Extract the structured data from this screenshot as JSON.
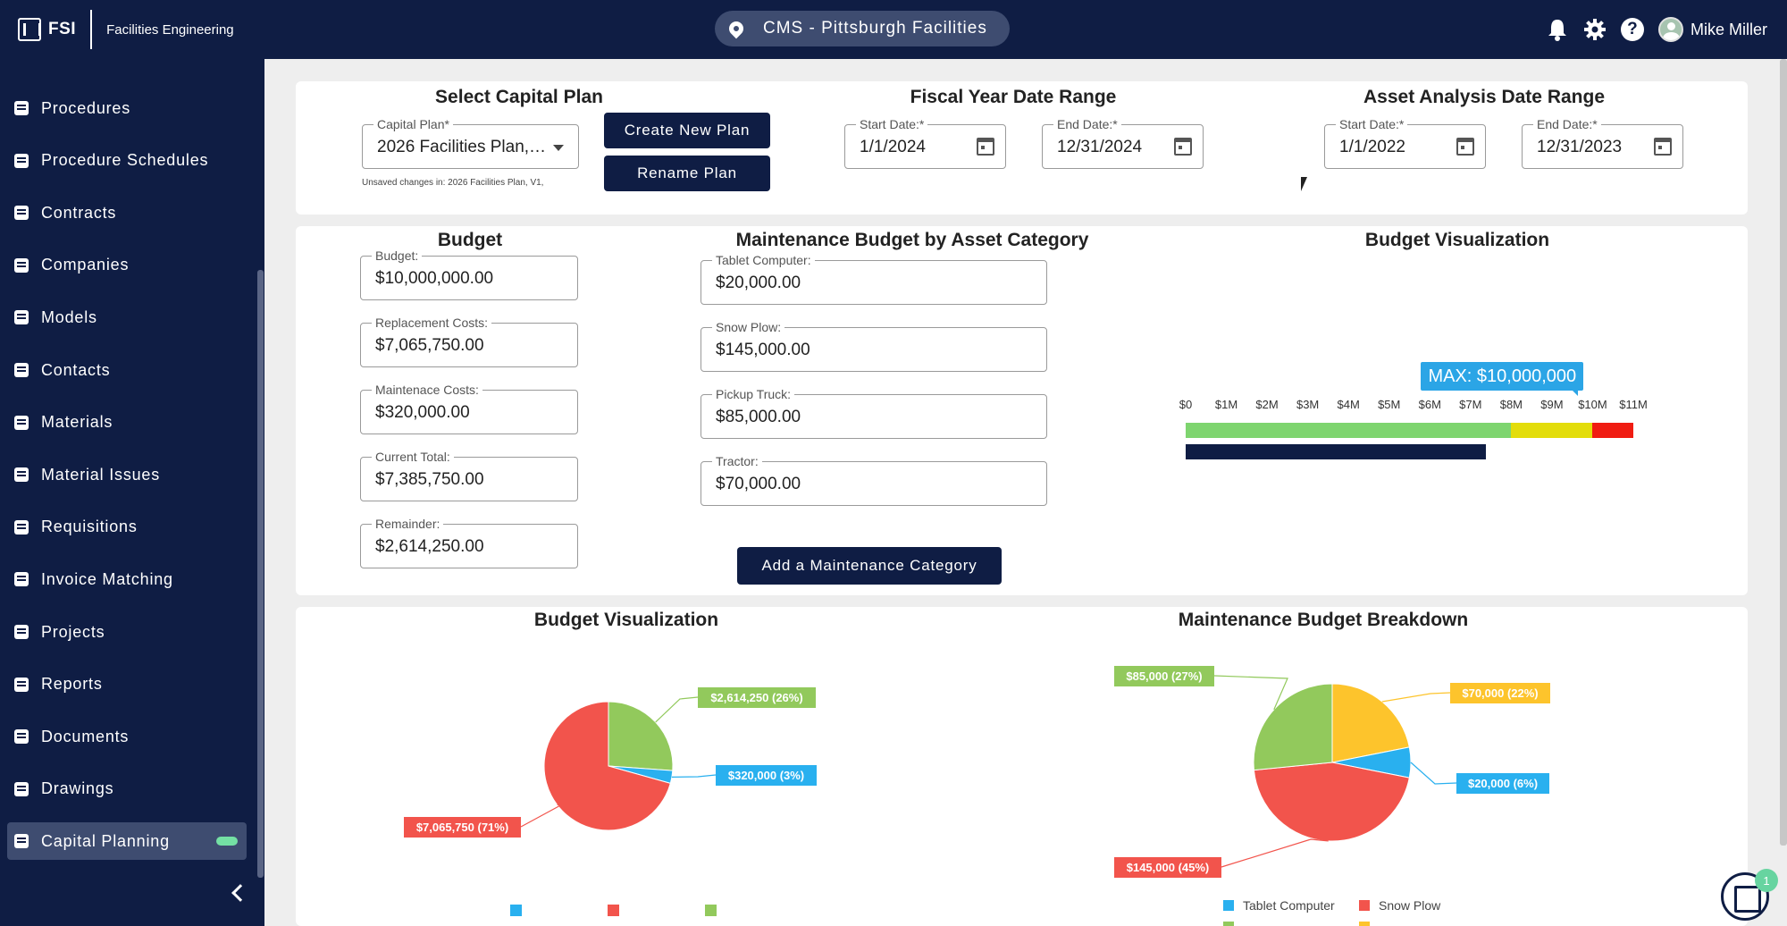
{
  "header": {
    "logo_text": "FSI",
    "app_name": "Facilities Engineering",
    "site": "CMS - Pittsburgh Facilities",
    "user_name": "Mike Miller"
  },
  "sidebar": {
    "items": [
      {
        "label": "Procedures",
        "icon": "clipboard-icon"
      },
      {
        "label": "Procedure Schedules",
        "icon": "calendar-icon"
      },
      {
        "label": "Contracts",
        "icon": "contract-icon"
      },
      {
        "label": "Companies",
        "icon": "building-icon"
      },
      {
        "label": "Models",
        "icon": "models-icon"
      },
      {
        "label": "Contacts",
        "icon": "contact-icon"
      },
      {
        "label": "Materials",
        "icon": "materials-icon"
      },
      {
        "label": "Material Issues",
        "icon": "material-issues-icon"
      },
      {
        "label": "Requisitions",
        "icon": "cart-icon"
      },
      {
        "label": "Invoice Matching",
        "icon": "invoice-icon"
      },
      {
        "label": "Projects",
        "icon": "projects-icon"
      },
      {
        "label": "Reports",
        "icon": "reports-icon"
      },
      {
        "label": "Documents",
        "icon": "folder-icon"
      },
      {
        "label": "Drawings",
        "icon": "drawings-icon"
      },
      {
        "label": "Capital Planning",
        "icon": "capital-planning-icon",
        "active": true
      }
    ]
  },
  "plan": {
    "title": "Select Capital Plan",
    "select_label": "Capital Plan*",
    "select_value": "2026 Facilities Plan,…",
    "unsaved_note": "Unsaved changes in: 2026 Facilities Plan, V1,",
    "create_button": "Create New Plan",
    "rename_button": "Rename Plan"
  },
  "fiscal": {
    "title": "Fiscal Year Date Range",
    "start_label": "Start Date:*",
    "start_value": "1/1/2024",
    "end_label": "End Date:*",
    "end_value": "12/31/2024"
  },
  "asset_range": {
    "title": "Asset Analysis Date Range",
    "start_label": "Start Date:*",
    "start_value": "1/1/2022",
    "end_label": "End Date:*",
    "end_value": "12/31/2023"
  },
  "budget": {
    "title": "Budget",
    "fields": [
      {
        "label": "Budget:",
        "value": "$10,000,000.00"
      },
      {
        "label": "Replacement Costs:",
        "value": "$7,065,750.00"
      },
      {
        "label": "Maintenace Costs:",
        "value": "$320,000.00"
      },
      {
        "label": "Current Total:",
        "value": "$7,385,750.00"
      },
      {
        "label": "Remainder:",
        "value": "$2,614,250.00"
      }
    ]
  },
  "maintenance": {
    "title": "Maintenance Budget by Asset Category",
    "fields": [
      {
        "label": "Tablet Computer:",
        "value": "$20,000.00"
      },
      {
        "label": "Snow Plow:",
        "value": "$145,000.00"
      },
      {
        "label": "Pickup Truck:",
        "value": "$85,000.00"
      },
      {
        "label": "Tractor:",
        "value": "$70,000.00"
      }
    ],
    "add_button": "Add a Maintenance Category"
  },
  "colors": {
    "navy": "#0f1d44",
    "green": "#7ed56f",
    "yellow": "#e3dd0b",
    "red": "#f01c12",
    "pie_red": "#f2544c",
    "pie_green": "#92c95c",
    "pie_blue": "#29b0ef",
    "pie_yellow": "#fdc42c"
  },
  "chart_data": [
    {
      "type": "bar",
      "title": "Budget Visualization",
      "orientation": "horizontal",
      "x_ticks": [
        "$0",
        "$1M",
        "$2M",
        "$3M",
        "$4M",
        "$5M",
        "$6M",
        "$7M",
        "$8M",
        "$9M",
        "$10M",
        "$11M"
      ],
      "xlim": [
        0,
        11000000
      ],
      "bands": [
        {
          "from": 0,
          "to": 8000000,
          "color": "#7ed56f"
        },
        {
          "from": 8000000,
          "to": 10000000,
          "color": "#e3dd0b"
        },
        {
          "from": 10000000,
          "to": 11000000,
          "color": "#f01c12"
        }
      ],
      "value": 7385750,
      "max_label": "MAX: $10,000,000"
    },
    {
      "type": "pie",
      "title": "Budget Visualization",
      "slices": [
        {
          "value": 2614250,
          "label": "$2,614,250 (26%)",
          "color": "#92c95c"
        },
        {
          "value": 320000,
          "label": "$320,000 (3%)",
          "color": "#29b0ef"
        },
        {
          "value": 7065750,
          "label": "$7,065,750 (71%)",
          "color": "#f2544c"
        }
      ]
    },
    {
      "type": "pie",
      "title": "Maintenance Budget Breakdown",
      "slices": [
        {
          "value": 70000,
          "label": "$70,000 (22%)",
          "color": "#fdc42c"
        },
        {
          "value": 20000,
          "label": "$20,000 (6%)",
          "color": "#29b0ef",
          "name": "Tablet Computer"
        },
        {
          "value": 145000,
          "label": "$145,000 (45%)",
          "color": "#f2544c",
          "name": "Snow Plow"
        },
        {
          "value": 85000,
          "label": "$85,000 (27%)",
          "color": "#92c95c"
        }
      ],
      "legend": [
        "Tablet Computer",
        "Snow Plow"
      ]
    }
  ]
}
